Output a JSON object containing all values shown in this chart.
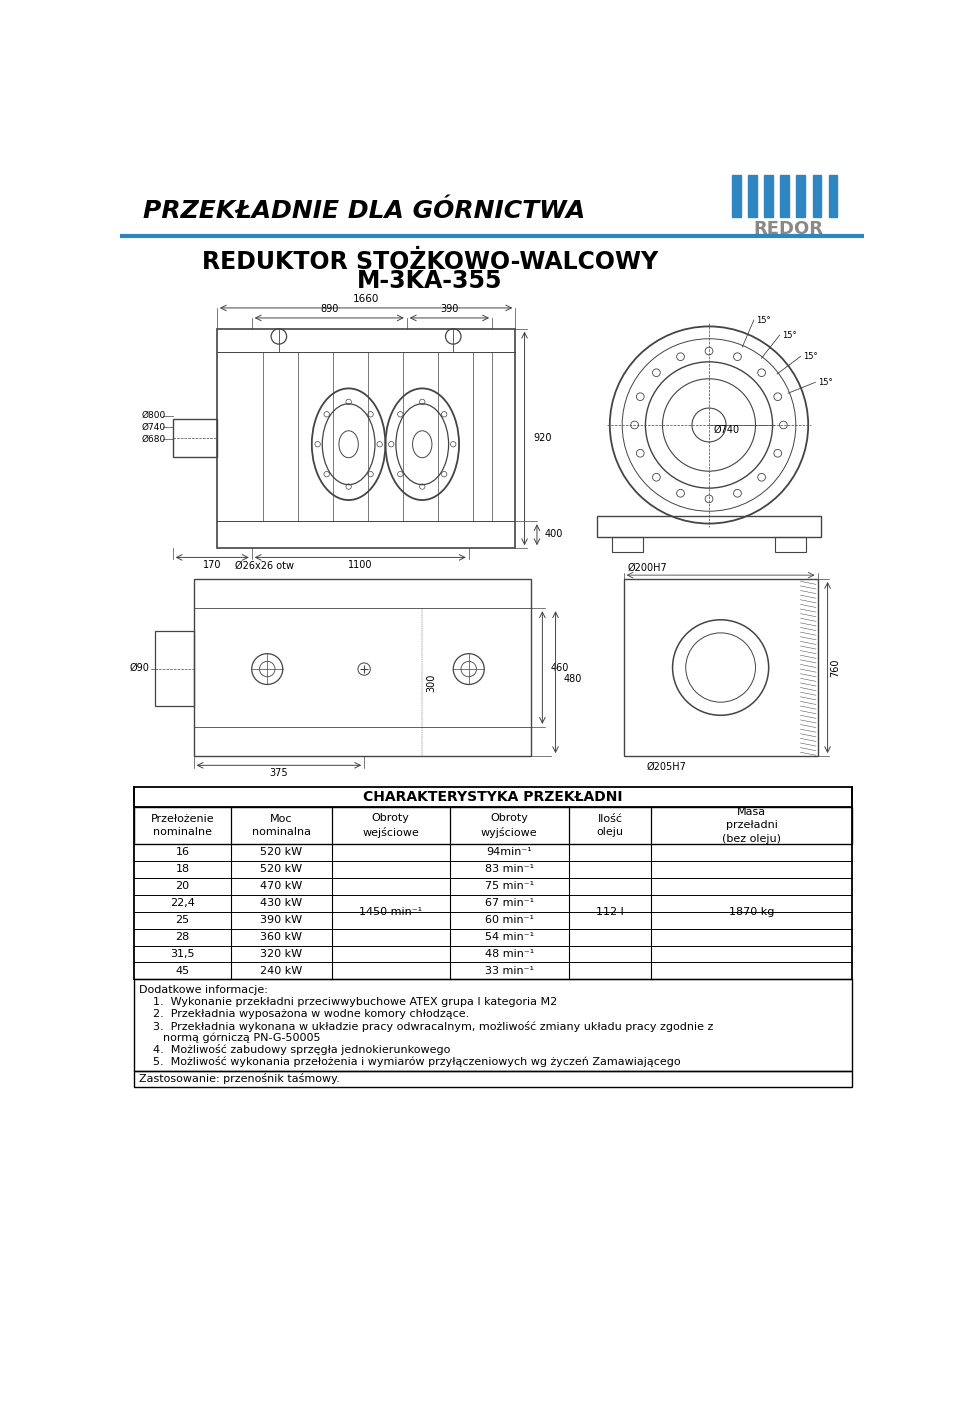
{
  "page_bg": "#ffffff",
  "header_title": "PRZEKŁADNIE DLA GÓRNICTWA",
  "header_line_color": "#2e86c1",
  "redor_stripe_color": "#2e86c1",
  "product_title_line1": "REDUKTOR STOŻKOWO-WALCOWY",
  "product_title_line2": "M-3KA-355",
  "table_title": "CHARAKTERYSTYKA PRZEKŁADNI",
  "col_headers": [
    "Przełożenie\nnominalne",
    "Moc\nnominalna",
    "Obroty\nwejściowe",
    "Obroty\nwyjściowe",
    "Ilość\noleju",
    "Masa\nprzeładni\n(bez oleju)"
  ],
  "rows": [
    [
      "16",
      "520 kW",
      "",
      "94min⁻¹",
      "",
      ""
    ],
    [
      "18",
      "520 kW",
      "",
      "83 min⁻¹",
      "",
      ""
    ],
    [
      "20",
      "470 kW",
      "",
      "75 min⁻¹",
      "",
      ""
    ],
    [
      "22,4",
      "430 kW",
      "1450 min⁻¹",
      "67 min⁻¹",
      "112 l",
      "1870 kg"
    ],
    [
      "25",
      "390 kW",
      "",
      "60 min⁻¹",
      "",
      ""
    ],
    [
      "28",
      "360 kW",
      "",
      "54 min⁻¹",
      "",
      ""
    ],
    [
      "31,5",
      "320 kW",
      "",
      "48 min⁻¹",
      "",
      ""
    ],
    [
      "45",
      "240 kW",
      "",
      "33 min⁻¹",
      "",
      ""
    ]
  ],
  "notes_title": "Dodatkowe informacje:",
  "notes": [
    "Wykonanie przekładni przeciwwybuchowe ATEX grupa I kategoria M2",
    "Przekładnia wyposażona w wodne komory chłodzące.",
    "Przekładnia wykonana w układzie pracy odwracalnym, możliwość zmiany układu pracy zgodnie z normą górniczą PN-G-50005",
    "Możliwość zabudowy sprzęgła jednokierunkowego",
    "Możliwość wykonania przełożenia i wymiarów przyłączeniowych wg życzeń Zamawiającego"
  ],
  "zastosowanie": "Zastosowanie: przenośnik taśmowy.",
  "drawing_line_color": "#444444",
  "dim_line_color": "#333333"
}
